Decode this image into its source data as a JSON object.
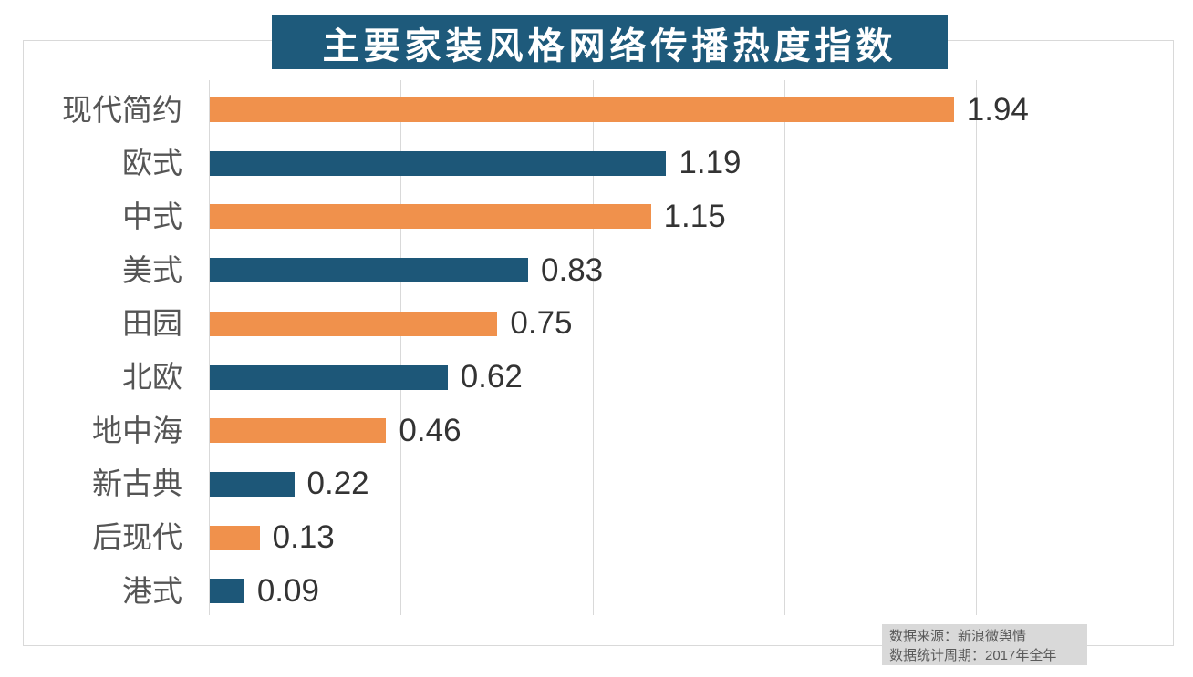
{
  "chart_data": {
    "type": "bar",
    "orientation": "horizontal",
    "title": "主要家装风格网络传播热度指数",
    "categories": [
      "现代简约",
      "欧式",
      "中式",
      "美式",
      "田园",
      "北欧",
      "地中海",
      "新古典",
      "后现代",
      "港式"
    ],
    "values": [
      1.94,
      1.19,
      1.15,
      0.83,
      0.75,
      0.62,
      0.46,
      0.22,
      0.13,
      0.09
    ],
    "value_labels": [
      "1.94",
      "1.19",
      "1.15",
      "0.83",
      "0.75",
      "0.62",
      "0.46",
      "0.22",
      "0.13",
      "0.09"
    ],
    "xlim": [
      0,
      2.5
    ],
    "gridline_values": [
      0,
      0.5,
      1.0,
      1.5,
      2.0
    ],
    "grid": true,
    "legend": "none",
    "bar_colors_alternating": [
      "#f0914c",
      "#1d5778"
    ]
  },
  "colors": {
    "banner_bg": "#1e5a7b",
    "title_text": "#ffffff",
    "bar_orange": "#f0914c",
    "bar_teal": "#1d5778",
    "gridline": "#d9d9d9",
    "frame_border": "#d9d9d9",
    "category_label": "#555555",
    "value_label": "#333333",
    "footer_bg": "#d9d9d9",
    "footer_text": "#595959"
  },
  "footer": {
    "source": "数据来源：新浪微舆情",
    "period": "数据统计周期：2017年全年"
  }
}
